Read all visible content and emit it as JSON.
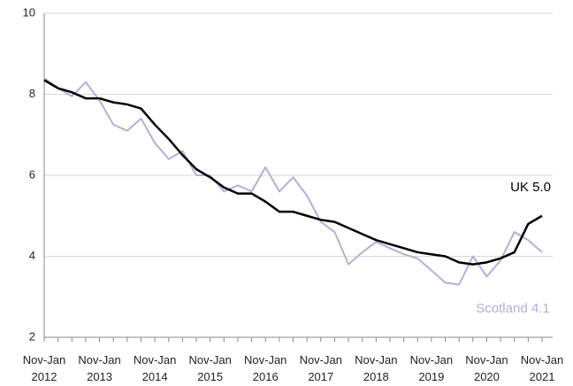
{
  "chart_data": {
    "type": "line",
    "categories": [
      "Nov-Jan 2012",
      null,
      null,
      null,
      "Nov-Jan 2013",
      null,
      null,
      null,
      "Nov-Jan 2014",
      null,
      null,
      null,
      "Nov-Jan 2015",
      null,
      null,
      null,
      "Nov-Jan 2016",
      null,
      null,
      null,
      "Nov-Jan 2017",
      null,
      null,
      null,
      "Nov-Jan 2018",
      null,
      null,
      null,
      "Nov-Jan 2019",
      null,
      null,
      null,
      "Nov-Jan 2020",
      null,
      null,
      null,
      "Nov-Jan 2021"
    ],
    "series": [
      {
        "name": "UK",
        "color": "#000000",
        "values": [
          8.35,
          8.15,
          8.05,
          7.9,
          7.9,
          7.8,
          7.75,
          7.65,
          7.25,
          6.9,
          6.5,
          6.15,
          5.95,
          5.7,
          5.55,
          5.55,
          5.35,
          5.1,
          5.1,
          5.0,
          4.9,
          4.85,
          4.7,
          4.55,
          4.4,
          4.3,
          4.2,
          4.1,
          4.05,
          4.0,
          3.85,
          3.8,
          3.85,
          3.95,
          4.1,
          4.8,
          5.0
        ]
      },
      {
        "name": "Scotland",
        "color": "#b7aed6",
        "values": [
          8.4,
          8.15,
          7.95,
          8.3,
          7.85,
          7.25,
          7.1,
          7.4,
          6.8,
          6.4,
          6.6,
          6.0,
          6.0,
          5.6,
          5.75,
          5.6,
          6.2,
          5.6,
          5.95,
          5.5,
          4.85,
          4.6,
          3.8,
          4.1,
          4.35,
          4.2,
          4.05,
          3.95,
          3.65,
          3.35,
          3.3,
          4.0,
          3.5,
          3.9,
          4.6,
          4.4,
          4.1
        ]
      }
    ],
    "annotations": [
      {
        "text": "UK 5.0",
        "series": 0
      },
      {
        "text": "Scotland 4.1",
        "series": 1
      }
    ],
    "ylim": [
      2,
      10
    ],
    "yticks": [
      2,
      4,
      6,
      8,
      10
    ],
    "grid": true
  }
}
